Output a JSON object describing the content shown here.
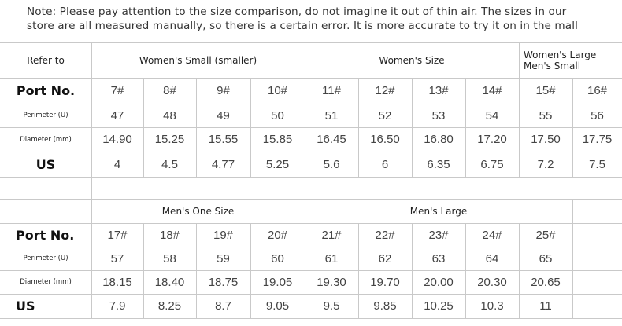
{
  "note": {
    "line1": "Note: Please pay attention to the size comparison, do not imagine it out of thin air. The sizes in our",
    "line2": "store are all measured manually, so there is a certain error. It is more accurate to try it on in the mall"
  },
  "table1": {
    "refer_to": "Refer to",
    "groups": {
      "small": "Women's Small (smaller)",
      "womens": "Women's Size",
      "large_line1": "Women's Large",
      "large_line2": "Men's Small"
    },
    "row_labels": {
      "port": "Port No.",
      "perimeter": "Perimeter (U)",
      "diameter": "Diameter (mm)",
      "us": "US"
    },
    "port": [
      "7#",
      "8#",
      "9#",
      "10#",
      "11#",
      "12#",
      "13#",
      "14#",
      "15#",
      "16#"
    ],
    "perimeter": [
      "47",
      "48",
      "49",
      "50",
      "51",
      "52",
      "53",
      "54",
      "55",
      "56"
    ],
    "diameter": [
      "14.90",
      "15.25",
      "15.55",
      "15.85",
      "16.45",
      "16.50",
      "16.80",
      "17.20",
      "17.50",
      "17.75"
    ],
    "us": [
      "4",
      "4.5",
      "4.77",
      "5.25",
      "5.6",
      "6",
      "6.35",
      "6.75",
      "7.2",
      "7.5"
    ]
  },
  "table2": {
    "groups": {
      "mens_one": "Men's One Size",
      "mens_large": "Men's Large"
    },
    "row_labels": {
      "port": "Port No.",
      "perimeter": "Perimeter (U)",
      "diameter": "Diameter (mm)",
      "us": "US"
    },
    "port": [
      "17#",
      "18#",
      "19#",
      "20#",
      "21#",
      "22#",
      "23#",
      "24#",
      "25#"
    ],
    "perimeter": [
      "57",
      "58",
      "59",
      "60",
      "61",
      "62",
      "63",
      "64",
      "65"
    ],
    "diameter": [
      "18.15",
      "18.40",
      "18.75",
      "19.05",
      "19.30",
      "19.70",
      "20.00",
      "20.30",
      "20.65"
    ],
    "us": [
      "7.9",
      "8.25",
      "8.7",
      "9.05",
      "9.5",
      "9.85",
      "10.25",
      "10.3",
      "11"
    ]
  }
}
